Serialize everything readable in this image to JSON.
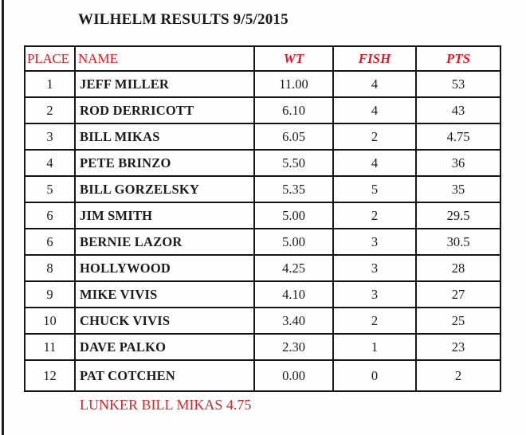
{
  "title": "WILHELM RESULTS 9/5/2015",
  "colors": {
    "header_red": "#e01c26",
    "lunker_red": "#d8242b",
    "ink_black": "#1b1b1b",
    "border_black": "#161616",
    "page_bg": "#fefefe"
  },
  "table": {
    "headers": [
      "PLACE",
      "NAME",
      "WT",
      "FISH",
      "PTS"
    ],
    "rows": [
      {
        "place": "1",
        "name": "JEFF MILLER",
        "wt": "11.00",
        "fish": "4",
        "pts": "53"
      },
      {
        "place": "2",
        "name": "ROD DERRICOTT",
        "wt": "6.10",
        "fish": "4",
        "pts": "43"
      },
      {
        "place": "3",
        "name": "BILL MIKAS",
        "wt": "6.05",
        "fish": "2",
        "pts": "4.75"
      },
      {
        "place": "4",
        "name": "PETE BRINZO",
        "wt": "5.50",
        "fish": "4",
        "pts": "36"
      },
      {
        "place": "5",
        "name": "BILL GORZELSKY",
        "wt": "5.35",
        "fish": "5",
        "pts": "35"
      },
      {
        "place": "6",
        "name": "JIM SMITH",
        "wt": "5.00",
        "fish": "2",
        "pts": "29.5"
      },
      {
        "place": "6",
        "name": "BERNIE LAZOR",
        "wt": "5.00",
        "fish": "3",
        "pts": "30.5"
      },
      {
        "place": "8",
        "name": "HOLLYWOOD",
        "wt": "4.25",
        "fish": "3",
        "pts": "28"
      },
      {
        "place": "9",
        "name": "MIKE VIVIS",
        "wt": "4.10",
        "fish": "3",
        "pts": "27"
      },
      {
        "place": "10",
        "name": "CHUCK VIVIS",
        "wt": "3.40",
        "fish": "2",
        "pts": "25"
      },
      {
        "place": "11",
        "name": "DAVE PALKO",
        "wt": "2.30",
        "fish": "1",
        "pts": "23"
      },
      {
        "place": "12",
        "name": "PAT COTCHEN",
        "wt": "0.00",
        "fish": "0",
        "pts": "2"
      }
    ]
  },
  "footer": {
    "lunker": "LUNKER BILL MIKAS 4.75"
  }
}
